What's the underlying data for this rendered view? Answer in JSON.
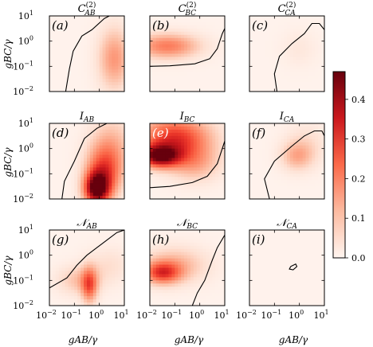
{
  "chart_data": {
    "type": "heatmap",
    "layout": "3x3 grid of log-log heatmaps with shared colorbar",
    "x_axis": {
      "label": "g_AB/γ",
      "label_display": "gAB/γ",
      "scale": "log",
      "range": [
        0.01,
        10
      ],
      "ticks": [
        {
          "base": "10",
          "exp": "−2"
        },
        {
          "base": "10",
          "exp": "−1"
        },
        {
          "base": "10",
          "exp": "0"
        },
        {
          "base": "10",
          "exp": "1"
        }
      ]
    },
    "y_axis": {
      "label": "g_BC/γ",
      "label_display": "gBC/γ",
      "scale": "log",
      "range": [
        0.01,
        10
      ],
      "ticks": [
        {
          "base": "10",
          "exp": "−2"
        },
        {
          "base": "10",
          "exp": "−1"
        },
        {
          "base": "10",
          "exp": "0"
        },
        {
          "base": "10",
          "exp": "1"
        }
      ]
    },
    "colorbar": {
      "range": [
        0.0,
        0.47
      ],
      "ticks": [
        "0.0",
        "0.1",
        "0.2",
        "0.3",
        "0.4"
      ],
      "colormap": "Reds"
    },
    "panels": [
      {
        "id": "a",
        "tag": "(a)",
        "title": {
          "base": "C",
          "sub": "AB",
          "sup": "(2)"
        },
        "peak": 0.16,
        "blobs": [
          {
            "x": 0.6,
            "y": -0.7,
            "sx": 0.45,
            "sy": 0.85,
            "a": 0.16
          }
        ],
        "contour": [
          [
            -1.35,
            -2
          ],
          [
            -1.2,
            -1.1
          ],
          [
            -1.05,
            -0.4
          ],
          [
            -0.7,
            0.2
          ],
          [
            -0.3,
            0.45
          ],
          [
            0.2,
            0.9
          ],
          [
            0.4,
            1
          ]
        ]
      },
      {
        "id": "b",
        "tag": "(b)",
        "title": {
          "base": "C",
          "sub": "BC",
          "sup": "(2)"
        },
        "peak": 0.2,
        "blobs": [
          {
            "x": -1.3,
            "y": -0.2,
            "sx": 0.9,
            "sy": 0.35,
            "a": 0.2
          }
        ],
        "contour": [
          [
            -2,
            -1
          ],
          [
            -1.2,
            -0.98
          ],
          [
            -0.2,
            -0.9
          ],
          [
            0.4,
            -0.7
          ],
          [
            0.7,
            -0.3
          ],
          [
            0.9,
            0.3
          ],
          [
            1,
            0.5
          ]
        ]
      },
      {
        "id": "c",
        "tag": "(c)",
        "title": {
          "base": "C",
          "sub": "CA",
          "sup": "(2)"
        },
        "peak": 0.03,
        "blobs": [
          {
            "x": 0.0,
            "y": -0.3,
            "sx": 0.5,
            "sy": 0.5,
            "a": 0.03
          }
        ],
        "contour": [
          [
            -0.9,
            -2
          ],
          [
            -1.0,
            -1.3
          ],
          [
            -0.8,
            -0.6
          ],
          [
            -0.3,
            -0.1
          ],
          [
            0.2,
            0.3
          ],
          [
            0.5,
            0.7
          ],
          [
            0.8,
            0.7
          ],
          [
            1,
            0.45
          ]
        ]
      },
      {
        "id": "d",
        "tag": "(d)",
        "title": {
          "base": "I",
          "sub": "AB",
          "sup": ""
        },
        "peak": 0.45,
        "blobs": [
          {
            "x": -0.1,
            "y": -1.6,
            "sx": 0.35,
            "sy": 0.45,
            "a": 0.45
          },
          {
            "x": 0.2,
            "y": -0.9,
            "sx": 0.5,
            "sy": 0.7,
            "a": 0.25
          },
          {
            "x": 0.5,
            "y": 0.2,
            "sx": 0.6,
            "sy": 0.8,
            "a": 0.1
          }
        ],
        "contour": [
          [
            -1.5,
            -2
          ],
          [
            -1.4,
            -1.3
          ],
          [
            -1.0,
            -0.5
          ],
          [
            -0.6,
            0.4
          ],
          [
            -0.1,
            0.8
          ],
          [
            0.3,
            1
          ]
        ]
      },
      {
        "id": "e",
        "tag": "(e)",
        "title": {
          "base": "I",
          "sub": "BC",
          "sup": ""
        },
        "peak": 0.42,
        "blobs": [
          {
            "x": -1.6,
            "y": -0.3,
            "sx": 0.55,
            "sy": 0.3,
            "a": 0.42
          },
          {
            "x": -1.0,
            "y": 0.4,
            "sx": 1.0,
            "sy": 0.6,
            "a": 0.3
          },
          {
            "x": -0.2,
            "y": -0.6,
            "sx": 0.7,
            "sy": 0.5,
            "a": 0.12
          }
        ],
        "contour": [
          [
            -2,
            -1.55
          ],
          [
            -1.2,
            -1.5
          ],
          [
            -0.3,
            -1.35
          ],
          [
            0.3,
            -1.1
          ],
          [
            0.7,
            -0.6
          ],
          [
            0.9,
            0.0
          ],
          [
            1,
            0.3
          ]
        ]
      },
      {
        "id": "f",
        "tag": "(f)",
        "title": {
          "base": "I",
          "sub": "CA",
          "sup": ""
        },
        "peak": 0.12,
        "blobs": [
          {
            "x": -0.1,
            "y": -0.3,
            "sx": 0.45,
            "sy": 0.4,
            "a": 0.12
          },
          {
            "x": 0.3,
            "y": 0.2,
            "sx": 0.6,
            "sy": 0.6,
            "a": 0.05
          }
        ],
        "contour": [
          [
            -1.2,
            -2
          ],
          [
            -1.4,
            -1.2
          ],
          [
            -1.0,
            -0.5
          ],
          [
            -0.3,
            0.1
          ],
          [
            0.2,
            0.5
          ],
          [
            0.6,
            0.7
          ],
          [
            0.9,
            0.7
          ],
          [
            1,
            0.5
          ]
        ]
      },
      {
        "id": "g",
        "tag": "(g)",
        "title": {
          "base": "𝒩",
          "sub": "AB",
          "sup": ""
        },
        "peak": 0.22,
        "blobs": [
          {
            "x": -0.4,
            "y": -1.2,
            "sx": 0.22,
            "sy": 0.5,
            "a": 0.22
          },
          {
            "x": -0.8,
            "y": -1.0,
            "sx": 0.6,
            "sy": 0.4,
            "a": 0.1
          },
          {
            "x": 0.4,
            "y": -0.4,
            "sx": 0.6,
            "sy": 0.5,
            "a": 0.05
          }
        ],
        "contour": [
          [
            -2,
            -1.3
          ],
          [
            -1.3,
            -0.9
          ],
          [
            -0.9,
            -0.4
          ],
          [
            -0.5,
            0.0
          ],
          [
            -0.1,
            0.3
          ],
          [
            0.3,
            0.6
          ],
          [
            0.7,
            0.9
          ],
          [
            1,
            1
          ]
        ]
      },
      {
        "id": "h",
        "tag": "(h)",
        "title": {
          "base": "𝒩",
          "sub": "BC",
          "sup": ""
        },
        "peak": 0.25,
        "blobs": [
          {
            "x": -1.5,
            "y": -0.7,
            "sx": 0.5,
            "sy": 0.3,
            "a": 0.25
          },
          {
            "x": -1.0,
            "y": -0.4,
            "sx": 0.9,
            "sy": 0.5,
            "a": 0.12
          }
        ],
        "contour": [
          [
            -0.3,
            -2
          ],
          [
            -0.1,
            -1.5
          ],
          [
            0.2,
            -1.0
          ],
          [
            0.5,
            -0.2
          ],
          [
            0.7,
            0.3
          ],
          [
            1,
            0.8
          ]
        ]
      },
      {
        "id": "i",
        "tag": "(i)",
        "title": {
          "base": "𝒩",
          "sub": "CA",
          "sup": ""
        },
        "peak": 0.0,
        "blobs": [],
        "contour": [
          [
            -0.35,
            -0.45
          ],
          [
            -0.15,
            -0.35
          ],
          [
            -0.1,
            -0.45
          ],
          [
            -0.25,
            -0.58
          ],
          [
            -0.4,
            -0.55
          ],
          [
            -0.35,
            -0.45
          ]
        ]
      }
    ]
  }
}
